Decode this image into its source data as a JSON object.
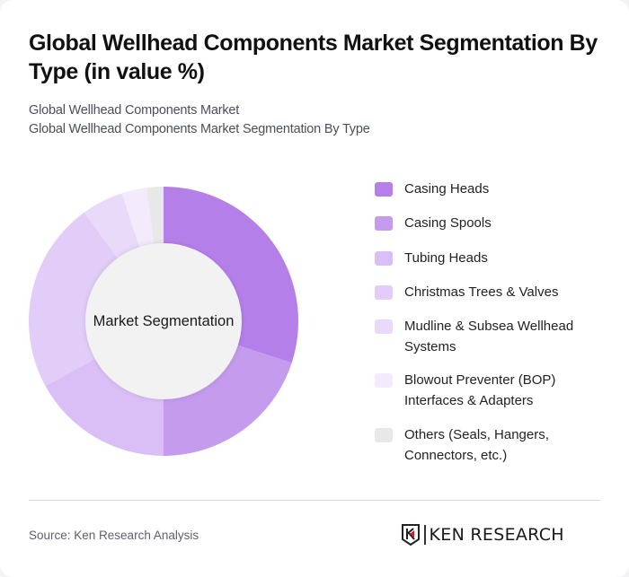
{
  "header": {
    "title": "Global Wellhead Components Market Segmentation By Type (in value %)",
    "subtitle_line1": "Global Wellhead Components Market",
    "subtitle_line2": "Global Wellhead Components Market Segmentation By Type"
  },
  "chart": {
    "center_label": "Market Segmentation"
  },
  "legend": {
    "items": [
      {
        "label": "Casing Heads",
        "color": "#b57fea"
      },
      {
        "label": "Casing Spools",
        "color": "#c59bee"
      },
      {
        "label": "Tubing Heads",
        "color": "#dabff6"
      },
      {
        "label": "Christmas Trees & Valves",
        "color": "#e1cdf7"
      },
      {
        "label": "Mudline & Subsea Wellhead Systems",
        "color": "#e9dafa"
      },
      {
        "label": "Blowout Preventer (BOP) Interfaces & Adapters",
        "color": "#f3ebfc"
      },
      {
        "label": "Others (Seals, Hangers, Connectors, etc.)",
        "color": "#e8e8e8"
      }
    ]
  },
  "footer": {
    "source": "Source: Ken Research Analysis",
    "logo_text": "KEN RESEARCH"
  },
  "chart_data": {
    "type": "pie",
    "subtype": "donut",
    "title": "Global Wellhead Components Market Segmentation By Type (in value %)",
    "subtitle": "Global Wellhead Components Market Segmentation By Type",
    "center_label": "Market Segmentation",
    "categories": [
      "Casing Heads",
      "Casing Spools",
      "Tubing Heads",
      "Christmas Trees & Valves",
      "Mudline & Subsea Wellhead Systems",
      "Blowout Preventer (BOP) Interfaces & Adapters",
      "Others (Seals, Hangers, Connectors, etc.)"
    ],
    "values": [
      30,
      20,
      17,
      23,
      5,
      3,
      2
    ],
    "colors": [
      "#b57fea",
      "#c59bee",
      "#dabff6",
      "#e1cdf7",
      "#e9dafa",
      "#f3ebfc",
      "#e8e8e8"
    ],
    "unit": "%",
    "legend_position": "right",
    "start_angle": "12 o'clock, clockwise"
  }
}
